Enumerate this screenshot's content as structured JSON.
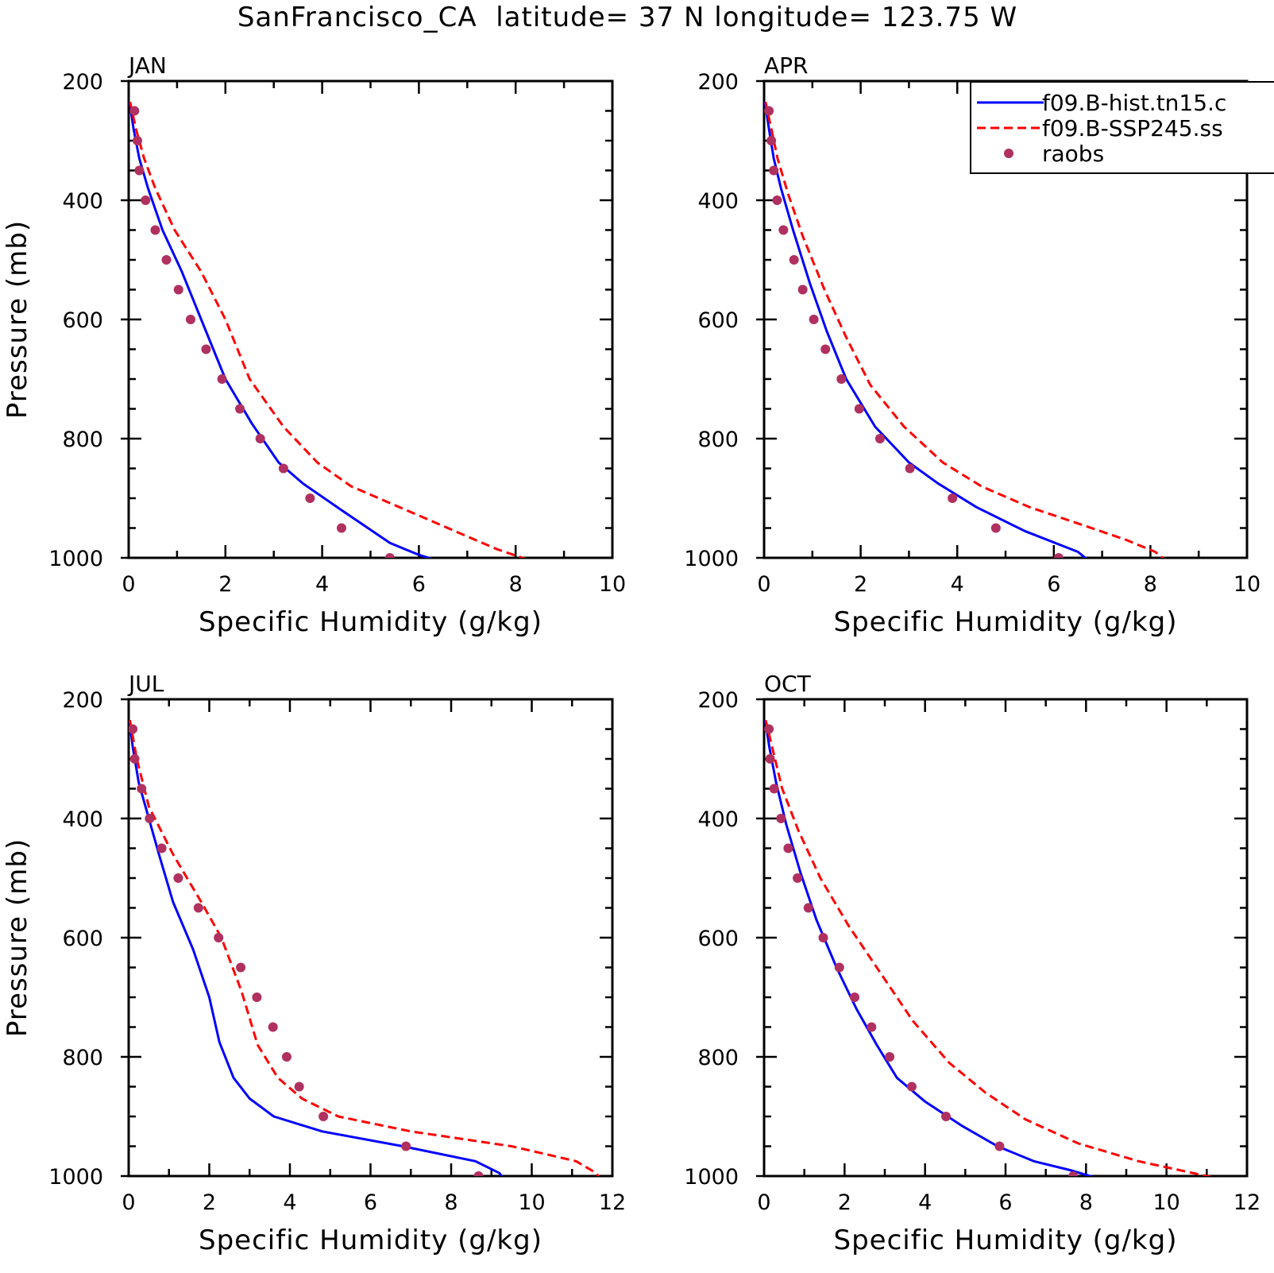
{
  "figure": {
    "suptitle": "SanFrancisco_CA  latitude= 37 N longitude= 123.75 W"
  },
  "colors": {
    "hist": "#0000ff",
    "ssp": "#ff0000",
    "raobs": "#b03060"
  },
  "legend": {
    "placement": "top-right of APR panel (clipped at right edge)",
    "entries": [
      {
        "label": "f09.B-hist.tn15.c",
        "style": "solid-line",
        "series": "hist"
      },
      {
        "label": "f09.B-SSP245.ss",
        "style": "dashed-line",
        "series": "ssp"
      },
      {
        "label": "raobs",
        "style": "marker",
        "series": "raobs"
      }
    ]
  },
  "chart_data": [
    {
      "type": "line",
      "panel": "JAN",
      "title": "JAN",
      "xlabel": "Specific Humidity (g/kg)",
      "ylabel": "Pressure (mb)",
      "xlim": [
        0,
        10
      ],
      "ylim": [
        1000,
        200
      ],
      "y_inverted": true,
      "xticks": [
        0,
        2,
        4,
        6,
        8,
        10
      ],
      "yticks": [
        200,
        400,
        600,
        800,
        1000
      ],
      "grid": false,
      "series": [
        {
          "name": "f09.B-hist.tn15.c",
          "key": "hist",
          "style": "solid",
          "points": [
            [
              0.02,
              235
            ],
            [
              0.1,
              280
            ],
            [
              0.22,
              330
            ],
            [
              0.4,
              380
            ],
            [
              0.7,
              450
            ],
            [
              1.1,
              520
            ],
            [
              1.5,
              600
            ],
            [
              2,
              700
            ],
            [
              2.55,
              775
            ],
            [
              3.1,
              840
            ],
            [
              3.6,
              875
            ],
            [
              4.4,
              920
            ],
            [
              5.4,
              975
            ],
            [
              6,
              995
            ],
            [
              6.6,
              1010
            ]
          ]
        },
        {
          "name": "f09.B-SSP245.ss",
          "key": "ssp",
          "style": "dashed",
          "points": [
            [
              0.03,
              235
            ],
            [
              0.15,
              280
            ],
            [
              0.32,
              330
            ],
            [
              0.55,
              380
            ],
            [
              0.95,
              450
            ],
            [
              1.5,
              520
            ],
            [
              2,
              600
            ],
            [
              2.5,
              700
            ],
            [
              3.2,
              780
            ],
            [
              3.9,
              840
            ],
            [
              4.6,
              880
            ],
            [
              5.6,
              915
            ],
            [
              6.6,
              950
            ],
            [
              7.6,
              985
            ],
            [
              8.5,
              1010
            ]
          ]
        },
        {
          "name": "raobs",
          "key": "raobs",
          "style": "marker",
          "points": [
            [
              0.12,
              250
            ],
            [
              0.18,
              300
            ],
            [
              0.22,
              350
            ],
            [
              0.35,
              400
            ],
            [
              0.55,
              450
            ],
            [
              0.78,
              500
            ],
            [
              1.03,
              550
            ],
            [
              1.28,
              600
            ],
            [
              1.6,
              650
            ],
            [
              1.93,
              700
            ],
            [
              2.3,
              750
            ],
            [
              2.72,
              800
            ],
            [
              3.2,
              850
            ],
            [
              3.75,
              900
            ],
            [
              4.4,
              950
            ],
            [
              5.4,
              1000
            ]
          ]
        }
      ]
    },
    {
      "type": "line",
      "panel": "APR",
      "title": "APR",
      "xlabel": "Specific Humidity (g/kg)",
      "ylabel": "",
      "xlim": [
        0,
        10
      ],
      "ylim": [
        1000,
        200
      ],
      "y_inverted": true,
      "xticks": [
        0,
        2,
        4,
        6,
        8,
        10
      ],
      "yticks": [
        200,
        400,
        600,
        800,
        1000
      ],
      "grid": false,
      "series": [
        {
          "name": "f09.B-hist.tn15.c",
          "key": "hist",
          "style": "solid",
          "points": [
            [
              0.02,
              235
            ],
            [
              0.1,
              280
            ],
            [
              0.2,
              330
            ],
            [
              0.35,
              380
            ],
            [
              0.6,
              450
            ],
            [
              0.95,
              540
            ],
            [
              1.3,
              620
            ],
            [
              1.7,
              700
            ],
            [
              2.3,
              780
            ],
            [
              3,
              840
            ],
            [
              3.6,
              875
            ],
            [
              4.4,
              915
            ],
            [
              5.4,
              955
            ],
            [
              6.5,
              990
            ],
            [
              6.8,
              1010
            ]
          ]
        },
        {
          "name": "f09.B-SSP245.ss",
          "key": "ssp",
          "style": "dashed",
          "points": [
            [
              0.03,
              235
            ],
            [
              0.15,
              280
            ],
            [
              0.28,
              330
            ],
            [
              0.5,
              390
            ],
            [
              0.8,
              460
            ],
            [
              1.25,
              550
            ],
            [
              1.7,
              630
            ],
            [
              2.2,
              710
            ],
            [
              2.9,
              780
            ],
            [
              3.7,
              840
            ],
            [
              4.5,
              880
            ],
            [
              5.5,
              915
            ],
            [
              6.6,
              945
            ],
            [
              7.5,
              970
            ],
            [
              8.1,
              990
            ],
            [
              8.4,
              1010
            ]
          ]
        },
        {
          "name": "raobs",
          "key": "raobs",
          "style": "marker",
          "points": [
            [
              0.1,
              250
            ],
            [
              0.15,
              300
            ],
            [
              0.2,
              350
            ],
            [
              0.27,
              400
            ],
            [
              0.4,
              450
            ],
            [
              0.62,
              500
            ],
            [
              0.8,
              550
            ],
            [
              1.03,
              600
            ],
            [
              1.27,
              650
            ],
            [
              1.6,
              700
            ],
            [
              1.97,
              750
            ],
            [
              2.4,
              800
            ],
            [
              3.02,
              850
            ],
            [
              3.9,
              900
            ],
            [
              4.8,
              950
            ],
            [
              6.1,
              1000
            ]
          ]
        }
      ]
    },
    {
      "type": "line",
      "panel": "JUL",
      "title": "JUL",
      "xlabel": "Specific Humidity (g/kg)",
      "ylabel": "Pressure (mb)",
      "xlim": [
        0,
        12
      ],
      "ylim": [
        1000,
        200
      ],
      "y_inverted": true,
      "xticks": [
        0,
        2,
        4,
        6,
        8,
        10,
        12
      ],
      "yticks": [
        200,
        400,
        600,
        800,
        1000
      ],
      "grid": false,
      "series": [
        {
          "name": "f09.B-hist.tn15.c",
          "key": "hist",
          "style": "solid",
          "points": [
            [
              0.02,
              235
            ],
            [
              0.1,
              280
            ],
            [
              0.25,
              340
            ],
            [
              0.5,
              400
            ],
            [
              0.75,
              460
            ],
            [
              1.1,
              540
            ],
            [
              1.6,
              620
            ],
            [
              2,
              700
            ],
            [
              2.25,
              775
            ],
            [
              2.6,
              835
            ],
            [
              3,
              870
            ],
            [
              3.6,
              900
            ],
            [
              4.8,
              925
            ],
            [
              6.8,
              950
            ],
            [
              8.6,
              975
            ],
            [
              9.2,
              995
            ],
            [
              9.35,
              1010
            ]
          ]
        },
        {
          "name": "f09.B-SSP245.ss",
          "key": "ssp",
          "style": "dashed",
          "points": [
            [
              0.03,
              235
            ],
            [
              0.2,
              300
            ],
            [
              0.5,
              380
            ],
            [
              1.1,
              460
            ],
            [
              1.8,
              540
            ],
            [
              2.3,
              600
            ],
            [
              2.8,
              690
            ],
            [
              3.2,
              780
            ],
            [
              3.7,
              835
            ],
            [
              4.3,
              870
            ],
            [
              5.2,
              900
            ],
            [
              7,
              925
            ],
            [
              9.5,
              950
            ],
            [
              11.1,
              975
            ],
            [
              11.6,
              995
            ],
            [
              11.75,
              1010
            ]
          ]
        },
        {
          "name": "raobs",
          "key": "raobs",
          "style": "marker",
          "points": [
            [
              0.1,
              250
            ],
            [
              0.15,
              300
            ],
            [
              0.32,
              350
            ],
            [
              0.52,
              400
            ],
            [
              0.82,
              450
            ],
            [
              1.23,
              500
            ],
            [
              1.73,
              550
            ],
            [
              2.23,
              600
            ],
            [
              2.78,
              650
            ],
            [
              3.18,
              700
            ],
            [
              3.58,
              750
            ],
            [
              3.92,
              800
            ],
            [
              4.23,
              850
            ],
            [
              4.83,
              900
            ],
            [
              6.88,
              950
            ],
            [
              8.68,
              1000
            ]
          ]
        }
      ]
    },
    {
      "type": "line",
      "panel": "OCT",
      "title": "OCT",
      "xlabel": "Specific Humidity (g/kg)",
      "ylabel": "",
      "xlim": [
        0,
        12
      ],
      "ylim": [
        1000,
        200
      ],
      "y_inverted": true,
      "xticks": [
        0,
        2,
        4,
        6,
        8,
        10,
        12
      ],
      "yticks": [
        200,
        400,
        600,
        800,
        1000
      ],
      "grid": false,
      "series": [
        {
          "name": "f09.B-hist.tn15.c",
          "key": "hist",
          "style": "solid",
          "points": [
            [
              0.03,
              235
            ],
            [
              0.13,
              280
            ],
            [
              0.3,
              340
            ],
            [
              0.55,
              410
            ],
            [
              0.9,
              490
            ],
            [
              1.3,
              570
            ],
            [
              1.8,
              650
            ],
            [
              2.3,
              720
            ],
            [
              2.8,
              780
            ],
            [
              3.3,
              835
            ],
            [
              4,
              875
            ],
            [
              4.9,
              915
            ],
            [
              5.8,
              950
            ],
            [
              6.7,
              975
            ],
            [
              7.6,
              990
            ],
            [
              8.6,
              1010
            ]
          ]
        },
        {
          "name": "f09.B-SSP245.ss",
          "key": "ssp",
          "style": "dashed",
          "points": [
            [
              0.04,
              235
            ],
            [
              0.2,
              280
            ],
            [
              0.45,
              350
            ],
            [
              0.85,
              420
            ],
            [
              1.4,
              500
            ],
            [
              2.1,
              580
            ],
            [
              2.9,
              660
            ],
            [
              3.7,
              740
            ],
            [
              4.6,
              810
            ],
            [
              5.5,
              860
            ],
            [
              6.5,
              905
            ],
            [
              7.8,
              945
            ],
            [
              9.3,
              975
            ],
            [
              11,
              1000
            ],
            [
              11.65,
              1010
            ]
          ]
        },
        {
          "name": "raobs",
          "key": "raobs",
          "style": "marker",
          "points": [
            [
              0.12,
              250
            ],
            [
              0.15,
              300
            ],
            [
              0.25,
              350
            ],
            [
              0.42,
              400
            ],
            [
              0.6,
              450
            ],
            [
              0.83,
              500
            ],
            [
              1.1,
              550
            ],
            [
              1.47,
              600
            ],
            [
              1.87,
              650
            ],
            [
              2.25,
              700
            ],
            [
              2.67,
              750
            ],
            [
              3.12,
              800
            ],
            [
              3.67,
              850
            ],
            [
              4.52,
              900
            ],
            [
              5.85,
              950
            ],
            [
              7.68,
              1000
            ]
          ]
        }
      ]
    }
  ]
}
